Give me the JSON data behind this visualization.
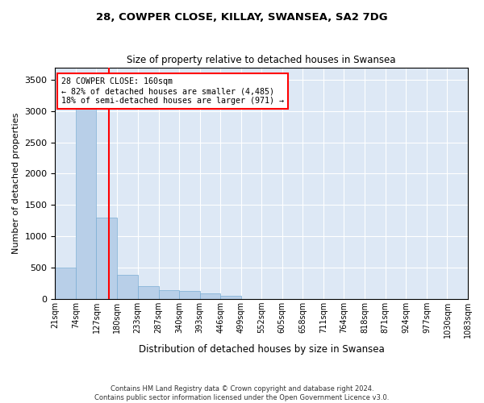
{
  "title": "28, COWPER CLOSE, KILLAY, SWANSEA, SA2 7DG",
  "subtitle": "Size of property relative to detached houses in Swansea",
  "xlabel": "Distribution of detached houses by size in Swansea",
  "ylabel": "Number of detached properties",
  "footnote": "Contains HM Land Registry data © Crown copyright and database right 2024.\nContains public sector information licensed under the Open Government Licence v3.0.",
  "annotation_line1": "28 COWPER CLOSE: 160sqm",
  "annotation_line2": "← 82% of detached houses are smaller (4,485)",
  "annotation_line3": "18% of semi-detached houses are larger (971) →",
  "bar_color": "#b8cfe8",
  "bar_edge_color": "#7aadd4",
  "property_line_x": 160,
  "property_line_color": "red",
  "background_color": "#dde8f5",
  "bins": [
    21,
    74,
    127,
    180,
    233,
    287,
    340,
    393,
    446,
    499,
    552,
    605,
    658,
    711,
    764,
    818,
    871,
    924,
    977,
    1030,
    1083
  ],
  "bin_labels": [
    "21sqm",
    "74sqm",
    "127sqm",
    "180sqm",
    "233sqm",
    "287sqm",
    "340sqm",
    "393sqm",
    "446sqm",
    "499sqm",
    "552sqm",
    "605sqm",
    "658sqm",
    "711sqm",
    "764sqm",
    "818sqm",
    "871sqm",
    "924sqm",
    "977sqm",
    "1030sqm",
    "1083sqm"
  ],
  "counts": [
    500,
    3100,
    1300,
    380,
    200,
    135,
    120,
    80,
    50,
    0,
    0,
    0,
    0,
    0,
    0,
    0,
    0,
    0,
    0,
    0
  ],
  "ylim": [
    0,
    3700
  ],
  "yticks": [
    0,
    500,
    1000,
    1500,
    2000,
    2500,
    3000,
    3500
  ]
}
